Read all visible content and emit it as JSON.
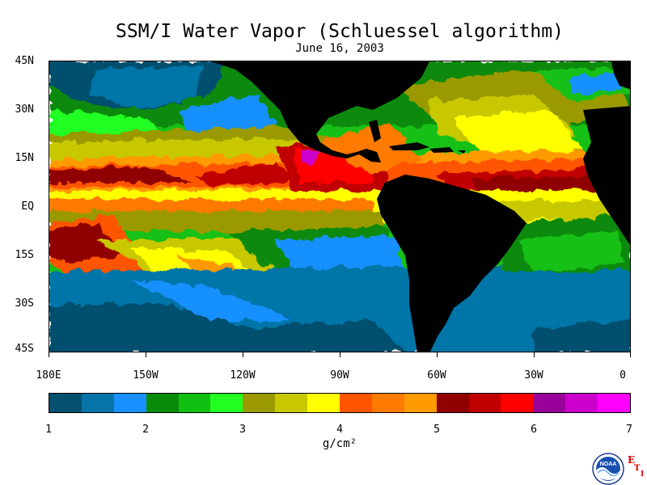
{
  "header": {
    "title": "SSM/I Water Vapor (Schluessel algorithm)",
    "date": "June 16, 2003"
  },
  "map": {
    "lat_labels": [
      "45N",
      "30N",
      "15N",
      "EQ",
      "15S",
      "30S",
      "45S"
    ],
    "lon_labels": [
      "180E",
      "150W",
      "120W",
      "90W",
      "60W",
      "30W",
      "0"
    ],
    "land_color": "#000000",
    "land_regions": [
      "north-america",
      "south-america",
      "africa",
      "caribbean-islands"
    ]
  },
  "colorbar": {
    "tick_labels": [
      "1",
      "2",
      "3",
      "4",
      "5",
      "6",
      "7"
    ],
    "units": "g/cm²",
    "colors": [
      "#04506e",
      "#0674a8",
      "#1890ff",
      "#0a8a0a",
      "#12c012",
      "#22ff22",
      "#9a9a00",
      "#c8c800",
      "#ffff00",
      "#ff5500",
      "#ff7a00",
      "#ff9a00",
      "#900000",
      "#c00000",
      "#ff0000",
      "#9a009a",
      "#cc00cc",
      "#ff00ff"
    ]
  },
  "branding": {
    "logo_text": "NOAA",
    "eti_letters": [
      "E",
      "T",
      "I"
    ]
  }
}
